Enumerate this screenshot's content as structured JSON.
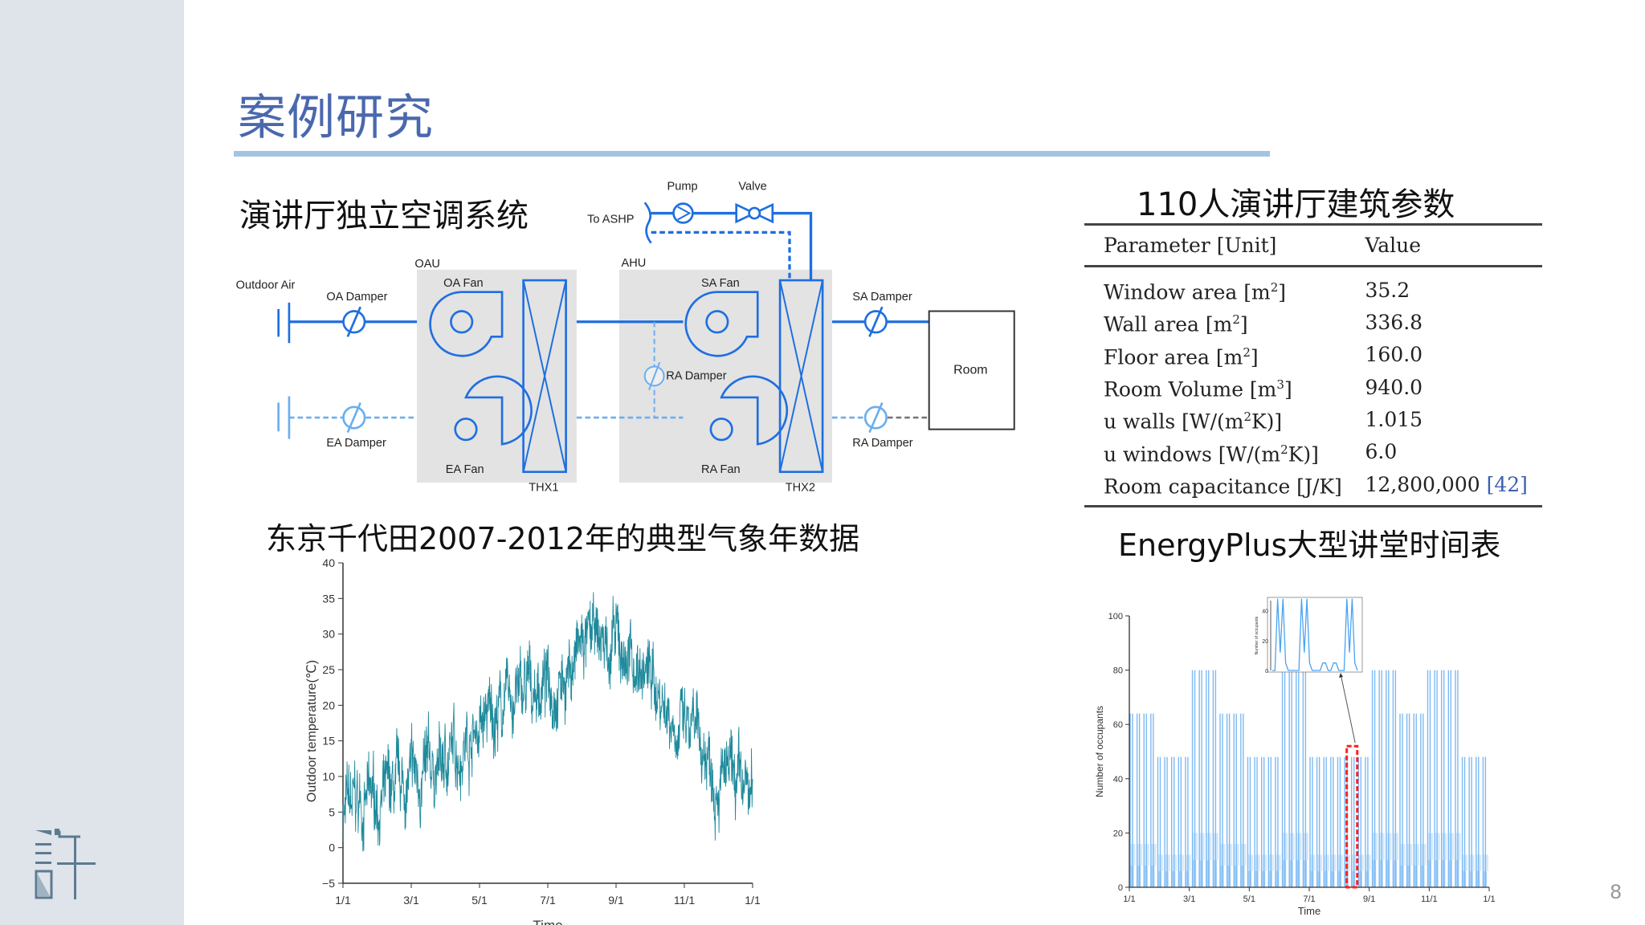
{
  "slide": {
    "title": "案例研究",
    "page_number": "8",
    "logo_text": "許"
  },
  "diagram": {
    "heading": "演讲厅独立空调系统",
    "labels": {
      "to_ashp": "To ASHP",
      "pump": "Pump",
      "valve": "Valve",
      "oau": "OAU",
      "ahu": "AHU",
      "outdoor_air": "Outdoor Air",
      "oa_damper": "OA Damper",
      "oa_fan": "OA Fan",
      "ea_damper": "EA Damper",
      "ea_fan": "EA Fan",
      "sa_fan": "SA Fan",
      "ra_fan": "RA Fan",
      "ra_damper_inner": "RA Damper",
      "thx1": "THX1",
      "thx2": "THX2",
      "sa_damper": "SA Damper",
      "ra_damper": "RA Damper",
      "room": "Room"
    },
    "colors": {
      "supply": "#1f6fe0",
      "return": "#6aaef0",
      "unit": "#e3e3e3"
    }
  },
  "table": {
    "heading": "110人演讲厅建筑参数",
    "columns": [
      "Parameter [Unit]",
      "Value"
    ],
    "rows": [
      {
        "param": "Window area [m",
        "sup": "2",
        "tail": "]",
        "value": "35.2",
        "ref": ""
      },
      {
        "param": "Wall area [m",
        "sup": "2",
        "tail": "]",
        "value": "336.8",
        "ref": ""
      },
      {
        "param": "Floor area [m",
        "sup": "2",
        "tail": "]",
        "value": "160.0",
        "ref": ""
      },
      {
        "param": "Room Volume [m",
        "sup": "3",
        "tail": "]",
        "value": "940.0",
        "ref": ""
      },
      {
        "param": "u walls [W/(m",
        "sup": "2",
        "tail": "K)]",
        "value": "1.015",
        "ref": ""
      },
      {
        "param": "u windows [W/(m",
        "sup": "2",
        "tail": "K)]",
        "value": "6.0",
        "ref": ""
      },
      {
        "param": "Room capacitance [J/K]",
        "sup": "",
        "tail": "",
        "value": "12,800,000",
        "ref": "[42]"
      }
    ]
  },
  "chart_data": [
    {
      "type": "line",
      "title": "东京千代田2007-2012年的典型气象年数据",
      "xlabel": "Time",
      "ylabel": "Outdoor temperature(℃)",
      "xticks": [
        "1/1",
        "3/1",
        "5/1",
        "7/1",
        "9/1",
        "11/1",
        "1/1"
      ],
      "yticks": [
        "−5",
        "0",
        "5",
        "10",
        "15",
        "20",
        "25",
        "30",
        "35",
        "40"
      ],
      "ylim": [
        -5,
        40
      ],
      "x_unit": "half-month of year (0-24)",
      "series": [
        {
          "name": "Outdoor temperature",
          "color": "#1f8a9c",
          "semimonthly_mean": [
            5,
            6,
            6.5,
            7,
            9,
            10,
            12,
            15,
            17,
            19,
            21,
            22,
            23,
            24,
            28,
            29,
            28,
            26,
            24,
            20,
            16,
            14,
            11,
            8,
            7
          ],
          "hourly_fluctuation_range": 6
        }
      ],
      "grid": false
    },
    {
      "type": "bar",
      "title": "EnergyPlus大型讲堂时间表",
      "xlabel": "Time",
      "ylabel": "Number of occupants",
      "xticks": [
        "1/1",
        "3/1",
        "5/1",
        "7/1",
        "9/1",
        "11/1",
        "1/1"
      ],
      "yticks": [
        "0",
        "20",
        "40",
        "60",
        "80",
        "100"
      ],
      "ylim": [
        0,
        100
      ],
      "color": "#8cc4f5",
      "monthly_peak_occupants": [
        64,
        48,
        80,
        64,
        48,
        80,
        48,
        48,
        80,
        64,
        80,
        48
      ],
      "highlight": {
        "label": "zoomed week",
        "start_month": 7.25,
        "end_month": 7.6,
        "max": 52,
        "color": "#ff2020"
      },
      "inset": {
        "ylabel": "Number of occupants",
        "yticks": [
          "0",
          "20",
          "40"
        ],
        "ylim": [
          0,
          50
        ],
        "profile": [
          0,
          0,
          48,
          12,
          48,
          5,
          0,
          0,
          0,
          0,
          0,
          48,
          12,
          48,
          5,
          0,
          0,
          0,
          0,
          5,
          5,
          0,
          0,
          5,
          5,
          0,
          0,
          0,
          48,
          12,
          48,
          5,
          0
        ]
      }
    }
  ]
}
